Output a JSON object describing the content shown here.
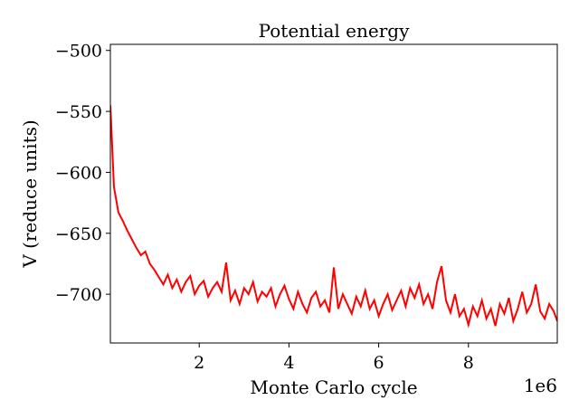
{
  "chart_data": {
    "type": "line",
    "title": "Potential energy",
    "xlabel": "Monte Carlo cycle",
    "ylabel": "V (reduce units)",
    "x_offset_label": "1e6",
    "color": "#ff0000",
    "x": [
      0.02,
      0.1,
      0.2,
      0.3,
      0.4,
      0.5,
      0.6,
      0.7,
      0.8,
      0.9,
      1.0,
      1.1,
      1.2,
      1.3,
      1.4,
      1.5,
      1.6,
      1.7,
      1.8,
      1.9,
      2.0,
      2.1,
      2.2,
      2.3,
      2.4,
      2.5,
      2.6,
      2.7,
      2.8,
      2.9,
      3.0,
      3.1,
      3.2,
      3.3,
      3.4,
      3.5,
      3.6,
      3.7,
      3.8,
      3.9,
      4.0,
      4.1,
      4.2,
      4.3,
      4.4,
      4.5,
      4.6,
      4.7,
      4.8,
      4.9,
      5.0,
      5.1,
      5.2,
      5.3,
      5.4,
      5.5,
      5.6,
      5.7,
      5.8,
      5.9,
      6.0,
      6.1,
      6.2,
      6.3,
      6.4,
      6.5,
      6.6,
      6.7,
      6.8,
      6.9,
      7.0,
      7.1,
      7.2,
      7.3,
      7.4,
      7.5,
      7.6,
      7.7,
      7.8,
      7.9,
      8.0,
      8.1,
      8.2,
      8.3,
      8.4,
      8.5,
      8.6,
      8.7,
      8.8,
      8.9,
      9.0,
      9.1,
      9.2,
      9.3,
      9.4,
      9.5,
      9.6,
      9.7,
      9.8,
      9.9,
      9.98
    ],
    "values": [
      -545,
      -612,
      -633,
      -640,
      -648,
      -655,
      -662,
      -668,
      -665,
      -675,
      -680,
      -686,
      -692,
      -684,
      -695,
      -688,
      -698,
      -690,
      -685,
      -700,
      -693,
      -689,
      -702,
      -695,
      -690,
      -698,
      -674,
      -705,
      -697,
      -708,
      -695,
      -700,
      -690,
      -706,
      -698,
      -702,
      -695,
      -710,
      -700,
      -693,
      -704,
      -712,
      -698,
      -708,
      -715,
      -703,
      -698,
      -710,
      -705,
      -715,
      -678,
      -712,
      -700,
      -708,
      -716,
      -702,
      -710,
      -697,
      -712,
      -705,
      -718,
      -708,
      -700,
      -713,
      -705,
      -697,
      -710,
      -695,
      -703,
      -692,
      -708,
      -700,
      -712,
      -690,
      -677,
      -705,
      -715,
      -700,
      -718,
      -712,
      -725,
      -710,
      -718,
      -705,
      -720,
      -712,
      -726,
      -708,
      -716,
      -703,
      -722,
      -712,
      -698,
      -715,
      -708,
      -692,
      -714,
      -720,
      -708,
      -714,
      -722
    ],
    "xlim": [
      0.02,
      9.98
    ],
    "xticks": [
      2,
      4,
      6,
      8
    ],
    "ylim": [
      -740,
      -495
    ],
    "yticks": [
      {
        "value": -500,
        "label": "−500"
      },
      {
        "value": -550,
        "label": "−550"
      },
      {
        "value": -600,
        "label": "−600"
      },
      {
        "value": -650,
        "label": "−650"
      },
      {
        "value": -700,
        "label": "−700"
      }
    ]
  }
}
